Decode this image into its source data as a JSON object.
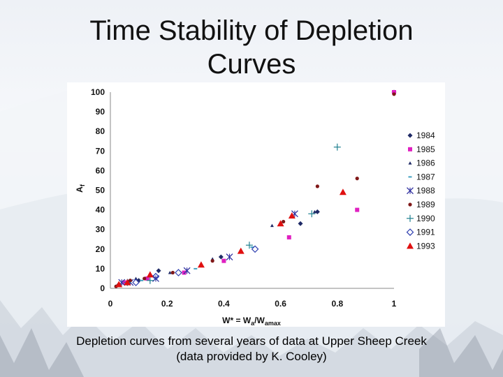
{
  "slide": {
    "title_line1": "Time Stability of Depletion",
    "title_line2": "Curves",
    "caption_line1": "Depletion curves from several years of data at Upper Sheep Creek",
    "caption_line2": "(data provided by K. Cooley)"
  },
  "chart_data": {
    "type": "scatter",
    "ylabel": "A",
    "ylabel_sub": "f",
    "xlabel_main": "W* = W",
    "xlabel_sub1": "a",
    "xlabel_mid": "/W",
    "xlabel_sub2": "amax",
    "xlim": [
      0,
      1
    ],
    "ylim": [
      0,
      100
    ],
    "x_ticks": [
      "0",
      "0.2",
      "0.4",
      "0.6",
      "0.8",
      "1"
    ],
    "y_ticks": [
      "0",
      "10",
      "20",
      "30",
      "40",
      "50",
      "60",
      "70",
      "80",
      "90",
      "100"
    ],
    "grid": false,
    "legend_position": "right",
    "series": [
      {
        "name": "1984",
        "marker": "diamond",
        "color": "#1f2a66",
        "x": [
          0.03,
          0.06,
          0.1,
          0.17,
          0.39,
          0.67,
          0.73,
          1.0
        ],
        "y": [
          2,
          3,
          4,
          9,
          16,
          33,
          39,
          100
        ]
      },
      {
        "name": "1985",
        "marker": "square",
        "color": "#e020c0",
        "x": [
          0.05,
          0.13,
          0.26,
          0.4,
          0.63,
          0.87,
          1.0
        ],
        "y": [
          3,
          5,
          8,
          14,
          26,
          40,
          100
        ]
      },
      {
        "name": "1986",
        "marker": "triangle-small",
        "color": "#1f2a66",
        "x": [
          0.09,
          0.21,
          0.36,
          0.57,
          0.72
        ],
        "y": [
          5,
          8,
          15,
          32,
          39
        ]
      },
      {
        "name": "1987",
        "marker": "dash",
        "color": "#40a0c0",
        "x": [
          0.11,
          0.3,
          0.5
        ],
        "y": [
          4,
          10,
          21
        ]
      },
      {
        "name": "1988",
        "marker": "x",
        "color": "#3030a0",
        "x": [
          0.04,
          0.07,
          0.16,
          0.27,
          0.42,
          0.65
        ],
        "y": [
          3,
          3,
          5,
          9,
          16,
          38
        ]
      },
      {
        "name": "1989",
        "marker": "circle",
        "color": "#801818",
        "x": [
          0.02,
          0.07,
          0.12,
          0.22,
          0.36,
          0.61,
          0.73,
          0.87,
          1.0
        ],
        "y": [
          1,
          4,
          5,
          8,
          14,
          34,
          52,
          56,
          99
        ]
      },
      {
        "name": "1990",
        "marker": "plus",
        "color": "#208090",
        "x": [
          0.06,
          0.14,
          0.49,
          0.71,
          0.8
        ],
        "y": [
          3,
          4,
          22,
          38,
          72
        ]
      },
      {
        "name": "1991",
        "marker": "diamond-open",
        "color": "#3040b0",
        "x": [
          0.09,
          0.16,
          0.24,
          0.51
        ],
        "y": [
          3,
          6,
          8,
          20
        ]
      },
      {
        "name": "1993",
        "marker": "triangle",
        "color": "#e01010",
        "x": [
          0.03,
          0.06,
          0.14,
          0.32,
          0.46,
          0.6,
          0.64,
          0.82
        ],
        "y": [
          2,
          3,
          7,
          12,
          19,
          33,
          37,
          49
        ]
      }
    ]
  }
}
